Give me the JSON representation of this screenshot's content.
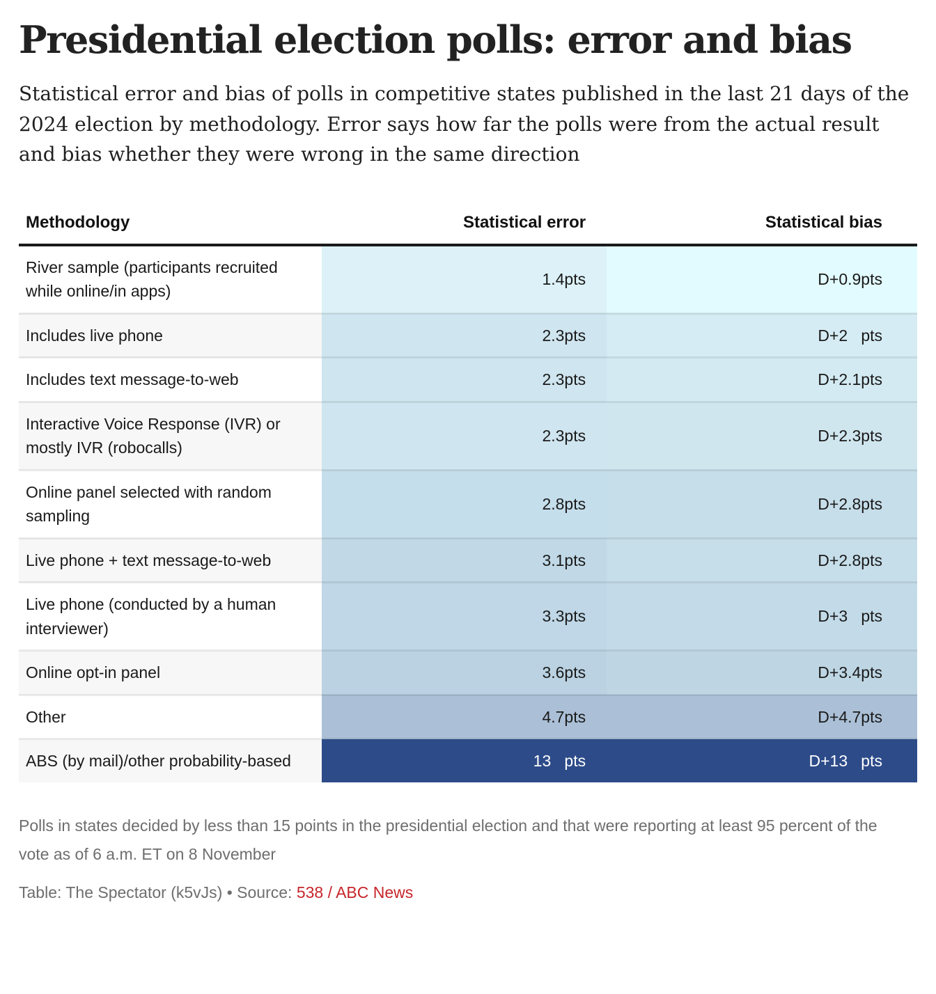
{
  "header": {
    "title": "Presidential election polls: error and bias",
    "subtitle": "Statistical error and bias of polls in competitive states published in the last 21 days of the 2024 election by methodology. Error says how far the polls were from the actual result and bias whether they were wrong in the same direction"
  },
  "table": {
    "columns": [
      "Methodology",
      "Statistical error",
      "Statistical bias"
    ],
    "rows": [
      {
        "methodology": "River sample (participants recruited while online/in apps)",
        "error": "1.4pts",
        "bias": "D+0.9pts",
        "error_color": "#dcf2f8",
        "bias_color": "#e2fbfe"
      },
      {
        "methodology": "Includes live phone",
        "error": "2.3pts",
        "bias": "D+2   pts",
        "error_color": "#cfe5ef",
        "bias_color": "#d5ecf4"
      },
      {
        "methodology": "Includes text message-to-web",
        "error": "2.3pts",
        "bias": "D+2.1pts",
        "error_color": "#cfe5ef",
        "bias_color": "#d3eaf2"
      },
      {
        "methodology": "Interactive Voice Response (IVR) or mostly IVR (robocalls)",
        "error": "2.3pts",
        "bias": "D+2.3pts",
        "error_color": "#cfe5ef",
        "bias_color": "#d0e6ef"
      },
      {
        "methodology": "Online panel selected with random sampling",
        "error": "2.8pts",
        "bias": "D+2.8pts",
        "error_color": "#c5deeb",
        "bias_color": "#c6deea"
      },
      {
        "methodology": "Live phone + text message-to-web",
        "error": "3.1pts",
        "bias": "D+2.8pts",
        "error_color": "#c1d9e7",
        "bias_color": "#c6deea"
      },
      {
        "methodology": "Live phone (conducted by a human interviewer)",
        "error": "3.3pts",
        "bias": "D+3   pts",
        "error_color": "#bfd7e6",
        "bias_color": "#c3dbe8"
      },
      {
        "methodology": "Online opt-in panel",
        "error": "3.6pts",
        "bias": "D+3.4pts",
        "error_color": "#bad2e2",
        "bias_color": "#bed6e4"
      },
      {
        "methodology": "Other",
        "error": "4.7pts",
        "bias": "D+4.7pts",
        "error_color": "#abc0d7",
        "bias_color": "#abc0d7"
      },
      {
        "methodology": "ABS (by mail)/other probability-based",
        "error": "13   pts",
        "bias": "D+13   pts",
        "error_color": "#2d4b89",
        "bias_color": "#2d4b89"
      }
    ]
  },
  "footer": {
    "note": "Polls in states decided by less than 15 points in the presidential election and that were reporting at least 95 percent of the vote as of 6 a.m. ET on 8 November",
    "credit_prefix": "Table: The Spectator (k5vJs) • Source: ",
    "source_link": "538 / ABC News"
  },
  "colors": {
    "link_red": "#c7252a",
    "header_rule": "#1a1a1a",
    "alt_row_gray": "#f7f7f7",
    "dark_cell_navy": "#2d4b89"
  },
  "chart_data": {
    "type": "table",
    "title": "Presidential election polls: error and bias",
    "categories": [
      "River sample (participants recruited while online/in apps)",
      "Includes live phone",
      "Includes text message-to-web",
      "Interactive Voice Response (IVR) or mostly IVR (robocalls)",
      "Online panel selected with random sampling",
      "Live phone + text message-to-web",
      "Live phone (conducted by a human interviewer)",
      "Online opt-in panel",
      "Other",
      "ABS (by mail)/other probability-based"
    ],
    "series": [
      {
        "name": "Statistical error (pts)",
        "values": [
          1.4,
          2.3,
          2.3,
          2.3,
          2.8,
          3.1,
          3.3,
          3.6,
          4.7,
          13
        ]
      },
      {
        "name": "Statistical bias (pts, D+)",
        "values": [
          0.9,
          2.0,
          2.1,
          2.3,
          2.8,
          2.8,
          3.0,
          3.4,
          4.7,
          13
        ]
      }
    ],
    "legend_position": "none",
    "notes": "Cell shading encodes magnitude on a light-cyan to navy ramp"
  }
}
